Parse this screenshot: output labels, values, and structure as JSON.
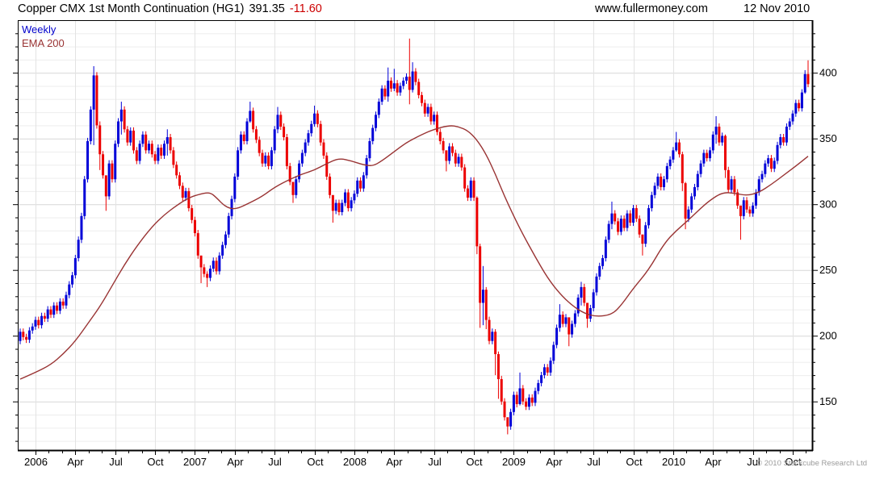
{
  "header": {
    "title": "Copper CMX 1st Month Continuation (HG1)",
    "price": "391.35",
    "change": "-11.60",
    "site": "www.fullermoney.com",
    "date": "12 Nov 2010"
  },
  "legend": {
    "weekly": "Weekly",
    "ema": "EMA 200"
  },
  "footer": {
    "copyright": "© 2010 Stockcube Research Ltd"
  },
  "colors": {
    "up": "#0000d8",
    "down": "#ec0000",
    "ema": "#993333",
    "grid_minor": "#ededed",
    "grid_major": "#d7d7d7",
    "grid_vert": "#e3e3e3",
    "axis": "#000000",
    "change_negative": "#cc0000",
    "legend_weekly": "#0000cc",
    "copyright_gray": "#9b9b9b"
  },
  "chart_data": {
    "type": "candlestick",
    "title": "Copper CMX 1st Month Continuation (HG1)",
    "timeframe": "Weekly",
    "last_price": 391.35,
    "change": -11.6,
    "ylim": [
      113,
      440
    ],
    "y_ticks": [
      150,
      200,
      250,
      300,
      350,
      400
    ],
    "y_minor_step": 10,
    "x_ticks": {
      "labels": [
        "2006",
        "Apr",
        "Jul",
        "Oct",
        "2007",
        "Apr",
        "Jul",
        "Oct",
        "2008",
        "Apr",
        "Jul",
        "Oct",
        "2009",
        "Apr",
        "Jul",
        "Oct",
        "2010",
        "Apr",
        "Jul",
        "Oct"
      ],
      "weeks": [
        5,
        18,
        31,
        44,
        57,
        70,
        83,
        96,
        109,
        122,
        135,
        148,
        161,
        174,
        187,
        200,
        213,
        226,
        239,
        252
      ]
    },
    "first_open": 196,
    "default_wick": 2.5,
    "closes": [
      203,
      199,
      197,
      204,
      207,
      212,
      208,
      215,
      213,
      220,
      216,
      223,
      219,
      226,
      223,
      231,
      239,
      246,
      259,
      273,
      291,
      319,
      348,
      372,
      398,
      360,
      338,
      322,
      306,
      331,
      319,
      346,
      363,
      372,
      357,
      347,
      356,
      341,
      333,
      346,
      353,
      341,
      346,
      338,
      333,
      343,
      337,
      346,
      351,
      341,
      330,
      322,
      314,
      305,
      310,
      297,
      288,
      278,
      261,
      252,
      247,
      244,
      251,
      257,
      249,
      261,
      269,
      277,
      291,
      304,
      321,
      341,
      353,
      348,
      363,
      371,
      357,
      349,
      339,
      331,
      337,
      329,
      341,
      357,
      368,
      359,
      351,
      329,
      317,
      307,
      319,
      331,
      339,
      347,
      354,
      361,
      369,
      361,
      347,
      337,
      321,
      307,
      295,
      301,
      294,
      301,
      309,
      297,
      303,
      308,
      318,
      312,
      322,
      335,
      348,
      358,
      368,
      378,
      388,
      382,
      394,
      388,
      392,
      385,
      390,
      394,
      397,
      387,
      401,
      393,
      383,
      377,
      369,
      374,
      363,
      368,
      355,
      348,
      341,
      333,
      344,
      339,
      331,
      336,
      328,
      312,
      305,
      318,
      305,
      268,
      225,
      235,
      212,
      196,
      203,
      186,
      167,
      150,
      138,
      131,
      142,
      155,
      148,
      160,
      150,
      146,
      153,
      149,
      158,
      164,
      170,
      176,
      172,
      181,
      193,
      206,
      216,
      209,
      214,
      201,
      209,
      217,
      229,
      237,
      225,
      213,
      221,
      233,
      245,
      253,
      259,
      273,
      285,
      293,
      287,
      279,
      289,
      282,
      293,
      286,
      297,
      289,
      277,
      270,
      284,
      297,
      307,
      314,
      321,
      313,
      319,
      329,
      334,
      341,
      347,
      338,
      316,
      289,
      296,
      306,
      313,
      323,
      331,
      339,
      335,
      341,
      353,
      359,
      347,
      352,
      326,
      311,
      319,
      309,
      299,
      291,
      303,
      296,
      293,
      299,
      309,
      319,
      323,
      331,
      335,
      327,
      333,
      345,
      351,
      347,
      359,
      363,
      369,
      377,
      373,
      385,
      399,
      391.35
    ],
    "wicks": {
      "24": [
        405,
        345
      ],
      "26": [
        363,
        326
      ],
      "28": [
        316,
        295
      ],
      "33": [
        378,
        353
      ],
      "48": [
        357,
        337
      ],
      "59": [
        257,
        240
      ],
      "61": [
        249,
        237
      ],
      "75": [
        378,
        362
      ],
      "84": [
        374,
        354
      ],
      "89": [
        311,
        301
      ],
      "96": [
        375,
        359
      ],
      "102": [
        301,
        286
      ],
      "120": [
        404,
        378
      ],
      "122": [
        403,
        386
      ],
      "127": [
        426,
        376
      ],
      "128": [
        408,
        385
      ],
      "139": [
        338,
        325
      ],
      "149": [
        306,
        262
      ],
      "150": [
        270,
        206
      ],
      "151": [
        253,
        208
      ],
      "152": [
        237,
        205
      ],
      "155": [
        205,
        170
      ],
      "156": [
        188,
        152
      ],
      "159": [
        136,
        125
      ],
      "163": [
        172,
        147
      ],
      "176": [
        224,
        203
      ],
      "179": [
        206,
        192
      ],
      "183": [
        241,
        223
      ],
      "185": [
        217,
        206
      ],
      "193": [
        302,
        281
      ],
      "203": [
        273,
        261
      ],
      "214": [
        355,
        340
      ],
      "216": [
        340,
        310
      ],
      "217": [
        317,
        281
      ],
      "227": [
        367,
        346
      ],
      "230": [
        353,
        320
      ],
      "235": [
        296,
        273
      ],
      "256": [
        402,
        384
      ],
      "257": [
        409.5,
        389
      ]
    },
    "ema": {
      "label": "EMA 200",
      "points": [
        [
          0,
          167
        ],
        [
          5,
          172
        ],
        [
          10,
          178
        ],
        [
          14,
          186
        ],
        [
          18,
          196
        ],
        [
          22,
          209
        ],
        [
          26,
          222
        ],
        [
          30,
          238
        ],
        [
          34,
          254
        ],
        [
          38,
          268
        ],
        [
          43,
          283
        ],
        [
          47,
          292
        ],
        [
          51,
          299
        ],
        [
          55,
          305
        ],
        [
          59,
          308
        ],
        [
          62,
          309
        ],
        [
          64,
          305
        ],
        [
          67,
          298
        ],
        [
          70,
          296
        ],
        [
          74,
          300
        ],
        [
          79,
          306
        ],
        [
          83,
          313
        ],
        [
          88,
          319
        ],
        [
          92,
          323
        ],
        [
          96,
          326
        ],
        [
          100,
          331
        ],
        [
          104,
          335
        ],
        [
          108,
          333
        ],
        [
          112,
          330
        ],
        [
          115,
          329
        ],
        [
          118,
          333
        ],
        [
          122,
          340
        ],
        [
          126,
          347
        ],
        [
          131,
          353
        ],
        [
          135,
          357
        ],
        [
          140,
          360
        ],
        [
          143,
          359
        ],
        [
          146,
          356
        ],
        [
          149,
          349
        ],
        [
          152,
          338
        ],
        [
          155,
          323
        ],
        [
          158,
          306
        ],
        [
          161,
          291
        ],
        [
          164,
          277
        ],
        [
          168,
          260
        ],
        [
          172,
          244
        ],
        [
          176,
          232
        ],
        [
          180,
          223
        ],
        [
          184,
          217
        ],
        [
          188,
          214.5
        ],
        [
          193,
          216
        ],
        [
          196,
          223
        ],
        [
          200,
          236
        ],
        [
          205,
          250
        ],
        [
          210,
          270
        ],
        [
          214,
          280
        ],
        [
          218,
          288
        ],
        [
          222,
          297
        ],
        [
          225,
          303
        ],
        [
          229,
          309
        ],
        [
          233,
          308.5
        ],
        [
          237,
          306.5
        ],
        [
          241,
          309
        ],
        [
          245,
          315
        ],
        [
          249,
          322
        ],
        [
          253,
          329
        ],
        [
          257,
          336.5
        ]
      ]
    }
  }
}
